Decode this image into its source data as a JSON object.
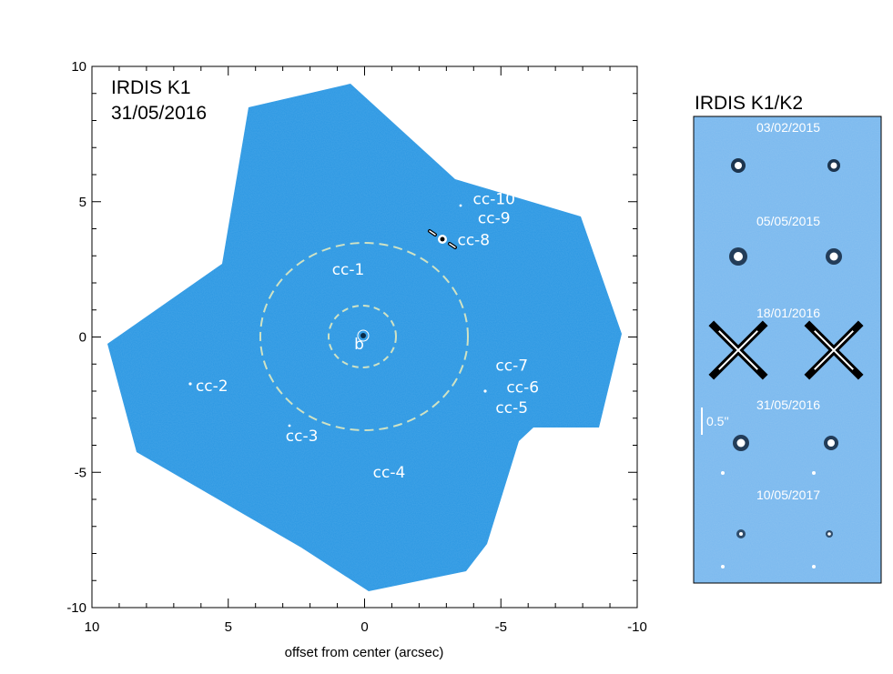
{
  "colors": {
    "field": "#2a97e3",
    "field_light": "#79b8ee",
    "frame": "#000000",
    "overlay_text": "#ffffff",
    "ring": "#cfe2c4"
  },
  "main_panel": {
    "title": "IRDIS K1",
    "date": "31/05/2016",
    "x_axis_label": "offset from center (arcsec)",
    "x_ticks": [
      "10",
      "5",
      "0",
      "-5",
      "-10"
    ],
    "y_ticks": [
      "10",
      "5",
      "0",
      "-5",
      "-10"
    ],
    "x_range": [
      10,
      -10
    ],
    "y_range": [
      -10,
      10
    ],
    "sources": [
      {
        "label": "b",
        "x": 0.2,
        "y": -0.45
      },
      {
        "label": "cc-1",
        "x": 0.6,
        "y": 2.3
      },
      {
        "label": "cc-2",
        "x": 5.6,
        "y": -2.0
      },
      {
        "label": "cc-3",
        "x": 2.3,
        "y": -3.85
      },
      {
        "label": "cc-4",
        "x": -0.9,
        "y": -5.2
      },
      {
        "label": "cc-5",
        "x": -5.4,
        "y": -2.8
      },
      {
        "label": "cc-6",
        "x": -5.8,
        "y": -2.05
      },
      {
        "label": "cc-7",
        "x": -5.4,
        "y": -1.25
      },
      {
        "label": "cc-8",
        "x": -4.0,
        "y": 3.4
      },
      {
        "label": "cc-9",
        "x": -4.75,
        "y": 4.2
      },
      {
        "label": "cc-10",
        "x": -4.75,
        "y": 4.9
      }
    ]
  },
  "side_panel": {
    "title": "IRDIS K1/K2",
    "dates": [
      "03/02/2015",
      "05/05/2015",
      "18/01/2016",
      "31/05/2016",
      "10/05/2017"
    ],
    "scale_label": "0.5''"
  }
}
